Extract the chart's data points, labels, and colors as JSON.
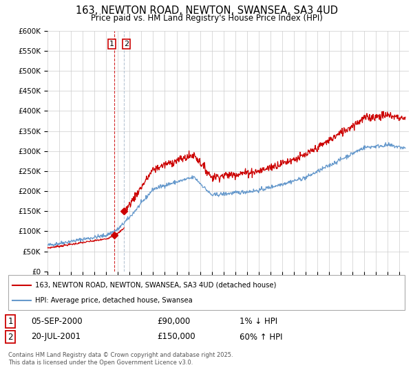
{
  "title": "163, NEWTON ROAD, NEWTON, SWANSEA, SA3 4UD",
  "subtitle": "Price paid vs. HM Land Registry's House Price Index (HPI)",
  "legend_label_red": "163, NEWTON ROAD, NEWTON, SWANSEA, SA3 4UD (detached house)",
  "legend_label_blue": "HPI: Average price, detached house, Swansea",
  "transaction1_date": "05-SEP-2000",
  "transaction1_price": "£90,000",
  "transaction1_hpi": "1% ↓ HPI",
  "transaction2_date": "20-JUL-2001",
  "transaction2_price": "£150,000",
  "transaction2_hpi": "60% ↑ HPI",
  "footer": "Contains HM Land Registry data © Crown copyright and database right 2025.\nThis data is licensed under the Open Government Licence v3.0.",
  "ylim": [
    0,
    600000
  ],
  "yticks": [
    0,
    50000,
    100000,
    150000,
    200000,
    250000,
    300000,
    350000,
    400000,
    450000,
    500000,
    550000,
    600000
  ],
  "color_red": "#cc0000",
  "color_blue": "#6699cc",
  "color_vline1": "#cc0000",
  "color_vline2": "#aabbcc",
  "background_color": "#ffffff",
  "grid_color": "#cccccc",
  "marker1_x": 2000.67,
  "marker1_y": 90000,
  "marker2_x": 2001.54,
  "marker2_y": 150000,
  "vline1_x": 2000.67,
  "vline2_x": 2001.54,
  "xlim_left": 1995.0,
  "xlim_right": 2025.8
}
